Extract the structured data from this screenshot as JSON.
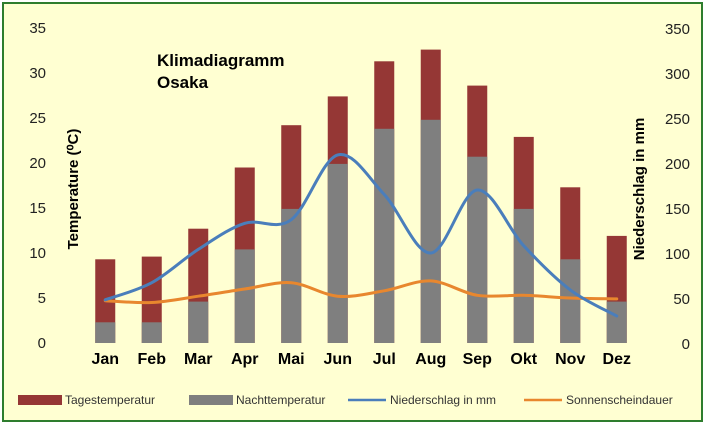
{
  "chart_data": {
    "type": "bar",
    "title": [
      "Klimadiagramm",
      "Osaka"
    ],
    "ylabel_left": "Temperature (⁰C)",
    "ylabel_right": "Niederschlag in mm",
    "ylim_left": [
      0,
      35
    ],
    "ylim_right": [
      0,
      350
    ],
    "yticks_left": [
      0,
      5,
      10,
      15,
      20,
      25,
      30,
      35
    ],
    "yticks_right": [
      0,
      50,
      100,
      150,
      200,
      250,
      300,
      350
    ],
    "categories": [
      "Jan",
      "Feb",
      "Mar",
      "Apr",
      "Mai",
      "Jun",
      "Jul",
      "Aug",
      "Sep",
      "Okt",
      "Nov",
      "Dez"
    ],
    "legend_position": "bottom",
    "grid": false,
    "series": [
      {
        "name": "Tagestemperatur",
        "type": "bar",
        "axis": "left",
        "color": "#953735",
        "values": [
          9.3,
          9.6,
          12.7,
          19.5,
          24.2,
          27.4,
          31.3,
          32.6,
          28.6,
          22.9,
          17.3,
          11.9
        ]
      },
      {
        "name": "Nachttemperatur",
        "type": "bar",
        "axis": "left",
        "color": "#7f7f7f",
        "values": [
          2.3,
          2.3,
          4.6,
          10.4,
          14.9,
          19.9,
          23.8,
          24.8,
          20.7,
          14.9,
          9.3,
          4.6
        ]
      },
      {
        "name": "Niederschlag in mm",
        "type": "line",
        "axis": "right",
        "color": "#4a7ebb",
        "values": [
          48,
          67,
          104,
          133,
          137,
          209,
          165,
          100,
          170,
          108,
          59,
          30
        ]
      },
      {
        "name": "Sonnenscheindauer",
        "type": "line",
        "axis": "right",
        "color": "#e8872e",
        "values": [
          47,
          45,
          52,
          60,
          67,
          52,
          58,
          69,
          53,
          53,
          50,
          49
        ]
      }
    ]
  }
}
